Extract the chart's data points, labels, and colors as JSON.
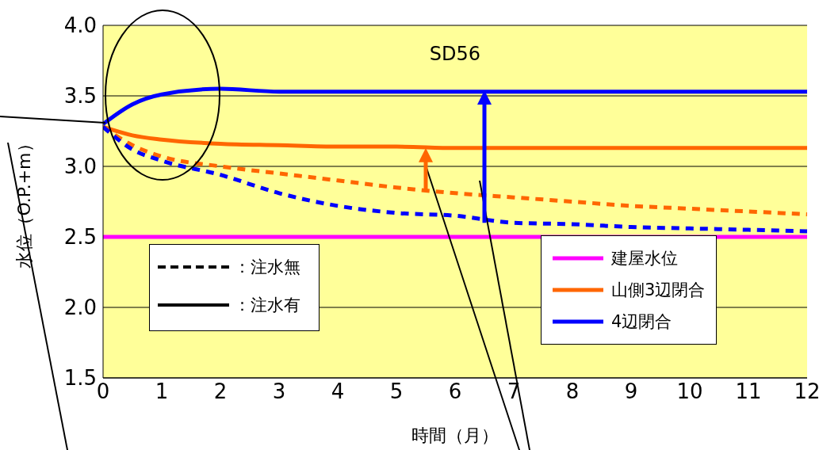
{
  "chart_data": {
    "type": "line",
    "title": "SD56",
    "xlabel": "時間（月）",
    "ylabel": "水位（O.P.+m）",
    "xlim": [
      0,
      12
    ],
    "xticks": [
      0,
      1,
      2,
      3,
      4,
      5,
      6,
      7,
      8,
      9,
      10,
      11,
      12
    ],
    "ylim": [
      1.5,
      4.0
    ],
    "yticks": [
      {
        "value": 1.5,
        "label": "1.5"
      },
      {
        "value": 2.0,
        "label": "2.0"
      },
      {
        "value": 2.5,
        "label": "2.5"
      },
      {
        "value": 3.0,
        "label": "3.0"
      },
      {
        "value": 3.5,
        "label": "3.5"
      },
      {
        "value": 4.0,
        "label": "4.0"
      }
    ],
    "grid": "y",
    "legend": "bottom right",
    "marker": "none",
    "annotations": [
      "：注水無",
      "：注水有"
    ],
    "series": [
      {
        "name": "建屋水位",
        "color": "#ff00ff",
        "line_style": "solid",
        "x": [
          0,
          12
        ],
        "values": [
          2.5,
          2.5
        ]
      },
      {
        "name": "山側3辺閉合",
        "color": "#ff6600",
        "line_style": "solid",
        "x": [
          0,
          0.5,
          1,
          2,
          3,
          4,
          5,
          6,
          7,
          8,
          9,
          10,
          11,
          12
        ],
        "values": [
          3.28,
          3.22,
          3.19,
          3.16,
          3.15,
          3.14,
          3.14,
          3.13,
          3.13,
          3.13,
          3.13,
          3.13,
          3.13,
          3.13
        ]
      },
      {
        "color": "#ff6600",
        "line_style": "dashed",
        "x": [
          0,
          0.5,
          1,
          2,
          3,
          4,
          5,
          6,
          7,
          8,
          9,
          10,
          11,
          12
        ],
        "values": [
          3.28,
          3.15,
          3.07,
          3.0,
          2.95,
          2.9,
          2.85,
          2.81,
          2.78,
          2.75,
          2.72,
          2.7,
          2.68,
          2.66
        ]
      },
      {
        "name": "4辺閉合",
        "color": "#0000ff",
        "line_style": "solid",
        "x": [
          0,
          0.5,
          1,
          2,
          3,
          4,
          5,
          6,
          7,
          8,
          9,
          10,
          11,
          12
        ],
        "values": [
          3.3,
          3.44,
          3.51,
          3.55,
          3.53,
          3.53,
          3.53,
          3.53,
          3.53,
          3.53,
          3.53,
          3.53,
          3.53,
          3.53
        ]
      },
      {
        "color": "#0000ff",
        "line_style": "dashed",
        "x": [
          0,
          0.5,
          1,
          2,
          3,
          4,
          5,
          6,
          7,
          8,
          9,
          10,
          11,
          12
        ],
        "values": [
          3.28,
          3.12,
          3.04,
          2.94,
          2.81,
          2.72,
          2.67,
          2.65,
          2.6,
          2.59,
          2.57,
          2.56,
          2.55,
          2.54
        ]
      }
    ]
  }
}
